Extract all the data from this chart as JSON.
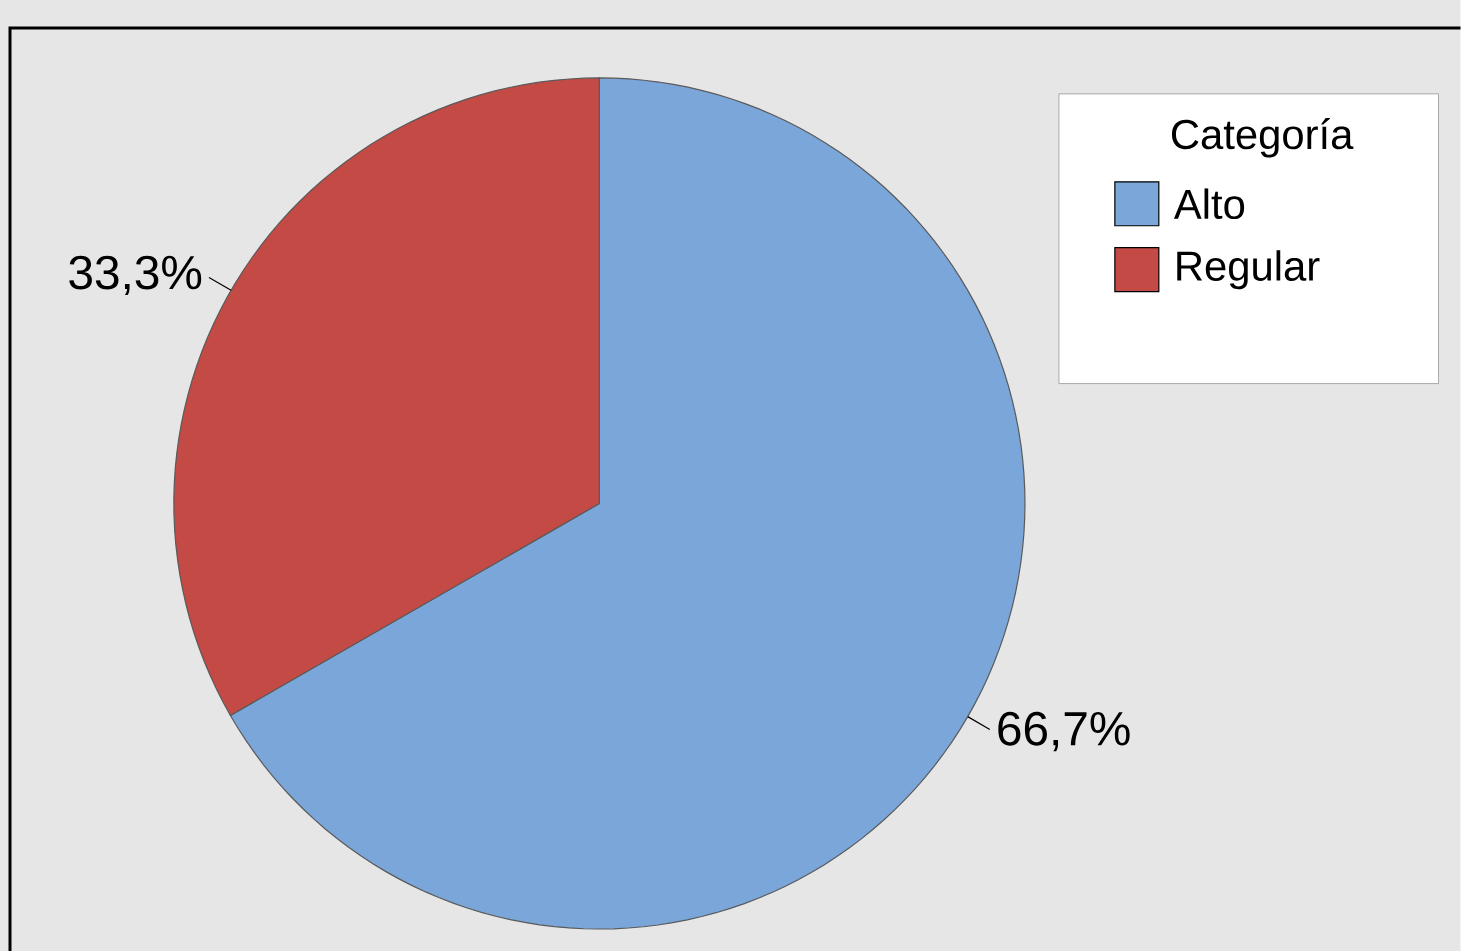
{
  "chart_data": {
    "type": "pie",
    "legend_title": "Categoría",
    "legend": "top right",
    "categories": [
      "Alto",
      "Regular"
    ],
    "values": [
      66.7,
      33.3
    ],
    "value_labels": [
      "66,7%",
      "33,3%"
    ],
    "colors": [
      "#7aa6da",
      "#c44a45"
    ]
  }
}
